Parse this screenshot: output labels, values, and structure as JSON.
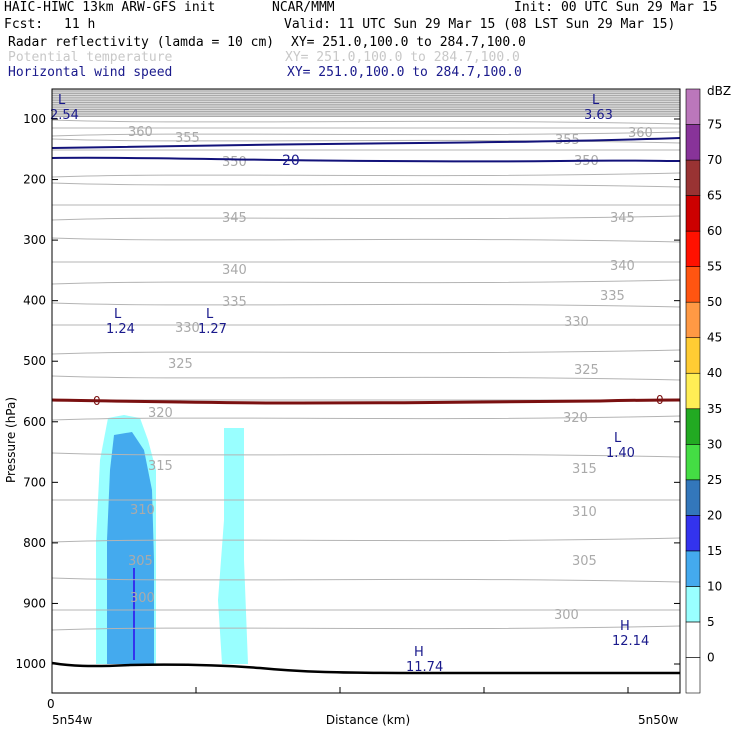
{
  "header": {
    "model": "HAIC-HIWC 13km ARW-GFS init",
    "org": "NCAR/MMM",
    "init": "Init: 00 UTC Sun 29 Mar 15",
    "fcst_label": "Fcst:",
    "fcst_value": "11 h",
    "valid": "Valid: 11 UTC Sun 29 Mar 15 (08 LST Sun 29 Mar 15)",
    "fields": [
      {
        "name": "Radar reflectivity (lamda = 10 cm)",
        "xy": "XY= 251.0,100.0 to 284.7,100.0",
        "color": "#000000"
      },
      {
        "name": "Potential temperature",
        "xy": "XY= 251.0,100.0 to 284.7,100.0",
        "color": "#bbbbbb"
      },
      {
        "name": "Horizontal wind speed",
        "xy": "XY= 251.0,100.0 to 284.7,100.0",
        "color": "#1a1a8c"
      }
    ]
  },
  "colors": {
    "theta": "#b4b4b4",
    "wind": "#12127a",
    "freezing": "#7a1010",
    "ground": "#000000"
  },
  "chart_data": {
    "type": "heatmap",
    "xlabel": "Distance (km)",
    "ylabel": "Pressure (hPa)",
    "x_ticks": [
      "0"
    ],
    "x_end_labels": [
      "5n54w",
      "5n50w"
    ],
    "ylim": [
      1050,
      50
    ],
    "y_ticks": [
      100,
      200,
      300,
      400,
      500,
      600,
      700,
      800,
      900,
      1000
    ],
    "colorbar": {
      "unit": "dBZ",
      "levels": [
        0,
        5,
        10,
        15,
        20,
        25,
        30,
        35,
        40,
        45,
        50,
        55,
        60,
        65,
        70,
        75
      ],
      "colors": [
        "#ffffff",
        "#99ffff",
        "#44aaee",
        "#3333ee",
        "#3377bb",
        "#44dd44",
        "#22aa22",
        "#ffee55",
        "#ffcc33",
        "#ff9944",
        "#ff5511",
        "#ff1100",
        "#cc0000",
        "#993333",
        "#883399",
        "#bb77bb"
      ]
    },
    "theta_contours": {
      "labels": [
        {
          "text": "360"
        },
        {
          "text": "355"
        },
        {
          "text": "350"
        },
        {
          "text": "355"
        },
        {
          "text": "360"
        },
        {
          "text": "350"
        },
        {
          "text": "345"
        },
        {
          "text": "345"
        },
        {
          "text": "340"
        },
        {
          "text": "340"
        },
        {
          "text": "335"
        },
        {
          "text": "335"
        },
        {
          "text": "330"
        },
        {
          "text": "330"
        },
        {
          "text": "325"
        },
        {
          "text": "325"
        },
        {
          "text": "320"
        },
        {
          "text": "320"
        },
        {
          "text": "315"
        },
        {
          "text": "315"
        },
        {
          "text": "310"
        },
        {
          "text": "310"
        },
        {
          "text": "305"
        },
        {
          "text": "305"
        },
        {
          "text": "300"
        },
        {
          "text": "300"
        }
      ]
    },
    "wind_label": "20",
    "freezing_labels": [
      "0",
      "0"
    ],
    "extrema": [
      {
        "type": "L",
        "value": "2.54"
      },
      {
        "type": "L",
        "value": "3.63"
      },
      {
        "type": "L",
        "value": "1.24"
      },
      {
        "type": "L",
        "value": "1.27"
      },
      {
        "type": "L",
        "value": "1.40"
      },
      {
        "type": "H",
        "value": "11.74"
      },
      {
        "type": "H",
        "value": "12.14"
      }
    ]
  }
}
